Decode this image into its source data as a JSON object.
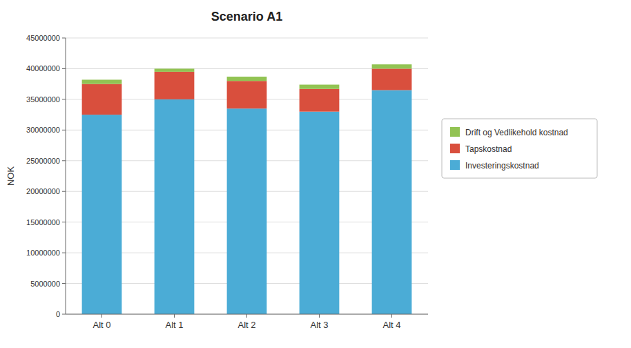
{
  "chart_data": {
    "type": "bar",
    "stacked": true,
    "title": "Scenario A1",
    "categories": [
      "Alt 0",
      "Alt 1",
      "Alt 2",
      "Alt 3",
      "Alt 4"
    ],
    "series": [
      {
        "name": "Investeringskostnad",
        "color": "#4bacd6",
        "values": [
          32500000,
          35000000,
          33500000,
          33000000,
          36500000
        ]
      },
      {
        "name": "Tapskostnad",
        "color": "#d94f3d",
        "values": [
          5000000,
          4500000,
          4500000,
          3700000,
          3500000
        ]
      },
      {
        "name": "Drift og Vedlikehold kostnad",
        "color": "#92c353",
        "values": [
          700000,
          500000,
          700000,
          700000,
          700000
        ]
      }
    ],
    "ylabel": "NOK",
    "ylim": [
      0,
      45000000
    ],
    "yticks": [
      0,
      5000000,
      10000000,
      15000000,
      20000000,
      25000000,
      30000000,
      35000000,
      40000000,
      45000000
    ],
    "grid": true,
    "legend": "right"
  }
}
